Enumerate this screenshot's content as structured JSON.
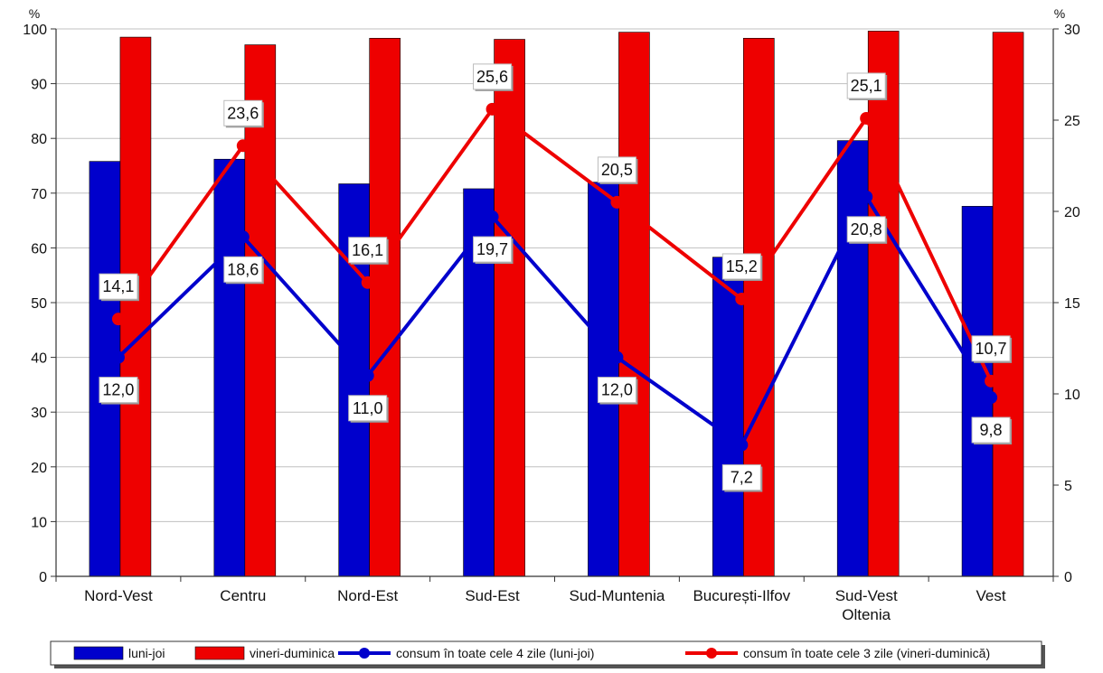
{
  "chart_data": {
    "type": "bar",
    "categories": [
      [
        "Nord-Vest"
      ],
      [
        "Centru"
      ],
      [
        "Nord-Est"
      ],
      [
        "Sud-Est"
      ],
      [
        "Sud-Muntenia"
      ],
      [
        "București-Ilfov"
      ],
      [
        "Sud-Vest",
        "Oltenia"
      ],
      [
        "Vest"
      ]
    ],
    "y_left": {
      "unit": "%",
      "min": 0,
      "max": 100,
      "step": 10
    },
    "y_right": {
      "unit": "%",
      "min": 0,
      "max": 30,
      "step": 5
    },
    "grid": true,
    "legend_position": "bottom",
    "bar_series": [
      {
        "name": "luni-joi",
        "color": "#0000cc",
        "axis": "left",
        "values": [
          75.8,
          76.2,
          71.7,
          70.8,
          72.0,
          58.3,
          79.6,
          67.6
        ]
      },
      {
        "name": "vineri-duminica",
        "color": "#ee0000",
        "axis": "left",
        "values": [
          98.5,
          97.1,
          98.3,
          98.1,
          99.4,
          98.3,
          99.6,
          99.4
        ]
      }
    ],
    "line_series": [
      {
        "name": "consum în toate cele 4 zile (luni-joi)",
        "color": "#0000cc",
        "axis": "right",
        "values": [
          12.0,
          18.6,
          11.0,
          19.7,
          12.0,
          7.2,
          20.8,
          9.8
        ],
        "labels": [
          "12,0",
          "18,6",
          "11,0",
          "19,7",
          "12,0",
          "7,2",
          "20,8",
          "9,8"
        ]
      },
      {
        "name": "consum în toate cele 3 zile (vineri-duminică)",
        "color": "#ee0000",
        "axis": "right",
        "values": [
          14.1,
          23.6,
          16.1,
          25.6,
          20.5,
          15.2,
          25.1,
          10.7
        ],
        "labels": [
          "14,1",
          "23,6",
          "16,1",
          "25,6",
          "20,5",
          "15,2",
          "25,1",
          "10,7"
        ]
      }
    ]
  }
}
